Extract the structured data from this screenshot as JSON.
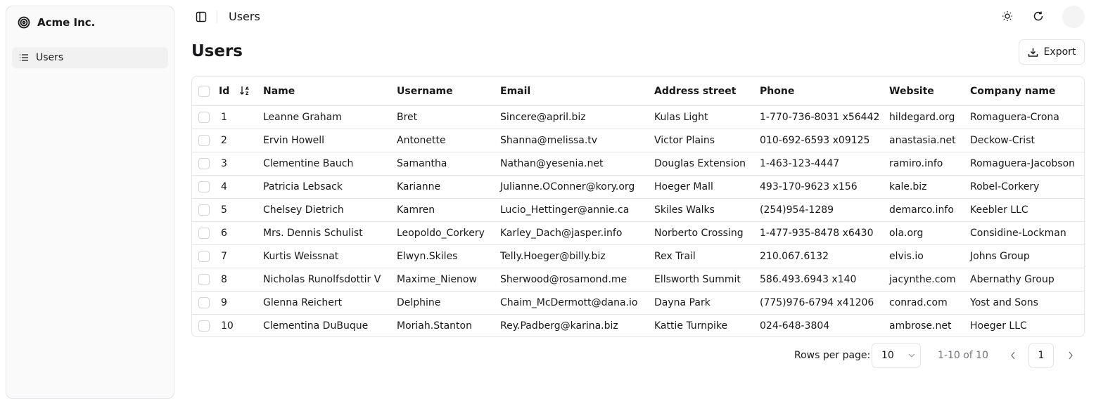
{
  "sidebar": {
    "brand": "Acme Inc.",
    "items": [
      {
        "label": "Users",
        "icon": "list-icon"
      }
    ]
  },
  "header": {
    "breadcrumb": "Users"
  },
  "page": {
    "title": "Users",
    "export_label": "Export"
  },
  "table": {
    "columns": [
      "Id",
      "Name",
      "Username",
      "Email",
      "Address street",
      "Phone",
      "Website",
      "Company name"
    ],
    "rows": [
      [
        "1",
        "Leanne Graham",
        "Bret",
        "Sincere@april.biz",
        "Kulas Light",
        "1-770-736-8031 x56442",
        "hildegard.org",
        "Romaguera-Crona"
      ],
      [
        "2",
        "Ervin Howell",
        "Antonette",
        "Shanna@melissa.tv",
        "Victor Plains",
        "010-692-6593 x09125",
        "anastasia.net",
        "Deckow-Crist"
      ],
      [
        "3",
        "Clementine Bauch",
        "Samantha",
        "Nathan@yesenia.net",
        "Douglas Extension",
        "1-463-123-4447",
        "ramiro.info",
        "Romaguera-Jacobson"
      ],
      [
        "4",
        "Patricia Lebsack",
        "Karianne",
        "Julianne.OConner@kory.org",
        "Hoeger Mall",
        "493-170-9623 x156",
        "kale.biz",
        "Robel-Corkery"
      ],
      [
        "5",
        "Chelsey Dietrich",
        "Kamren",
        "Lucio_Hettinger@annie.ca",
        "Skiles Walks",
        "(254)954-1289",
        "demarco.info",
        "Keebler LLC"
      ],
      [
        "6",
        "Mrs. Dennis Schulist",
        "Leopoldo_Corkery",
        "Karley_Dach@jasper.info",
        "Norberto Crossing",
        "1-477-935-8478 x6430",
        "ola.org",
        "Considine-Lockman"
      ],
      [
        "7",
        "Kurtis Weissnat",
        "Elwyn.Skiles",
        "Telly.Hoeger@billy.biz",
        "Rex Trail",
        "210.067.6132",
        "elvis.io",
        "Johns Group"
      ],
      [
        "8",
        "Nicholas Runolfsdottir V",
        "Maxime_Nienow",
        "Sherwood@rosamond.me",
        "Ellsworth Summit",
        "586.493.6943 x140",
        "jacynthe.com",
        "Abernathy Group"
      ],
      [
        "9",
        "Glenna Reichert",
        "Delphine",
        "Chaim_McDermott@dana.io",
        "Dayna Park",
        "(775)976-6794 x41206",
        "conrad.com",
        "Yost and Sons"
      ],
      [
        "10",
        "Clementina DuBuque",
        "Moriah.Stanton",
        "Rey.Padberg@karina.biz",
        "Kattie Turnpike",
        "024-648-3804",
        "ambrose.net",
        "Hoeger LLC"
      ]
    ]
  },
  "pagination": {
    "rows_per_page_label": "Rows per page:",
    "rows_per_page": "10",
    "range": "1-10 of 10",
    "current_page": "1"
  }
}
